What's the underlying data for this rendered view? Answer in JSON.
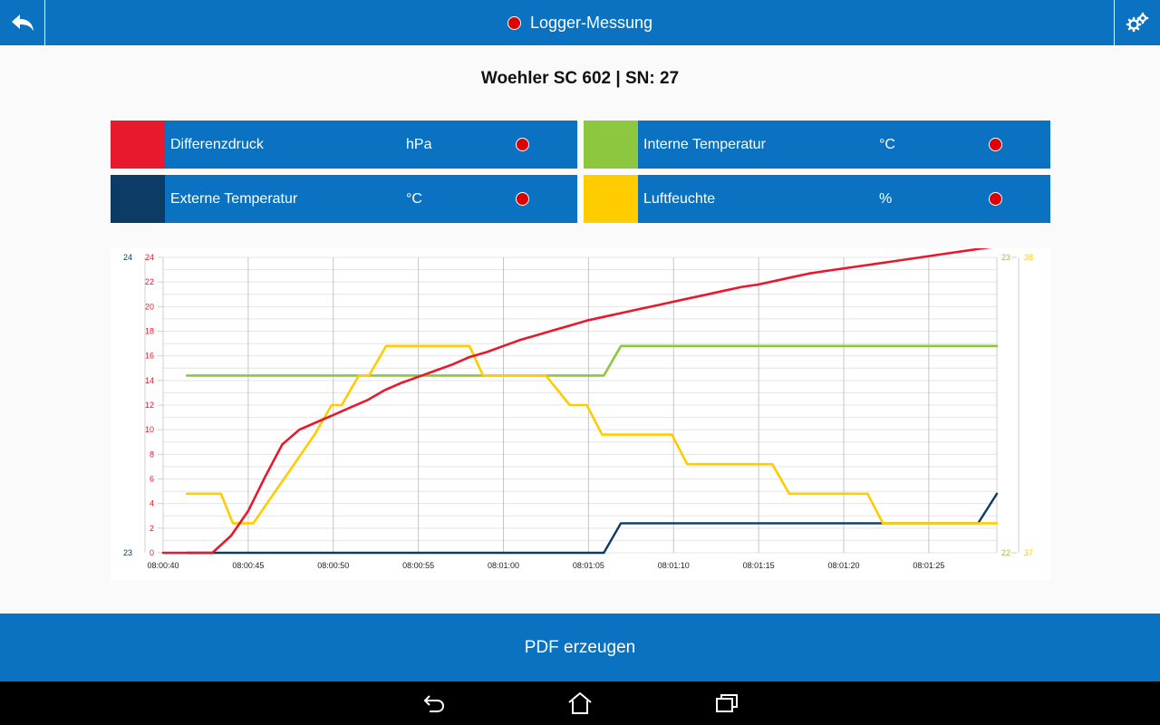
{
  "header": {
    "title": "Logger-Messung",
    "back_icon": "back-arrow-icon",
    "settings_icon": "gears-icon"
  },
  "device_title": "Woehler SC 602 | SN: 27",
  "legend": [
    {
      "name": "Differenzdruck",
      "unit": "hPa",
      "color": "#e8192c"
    },
    {
      "name": "Interne Temperatur",
      "unit": "°C",
      "color": "#8dc63f"
    },
    {
      "name": "Externe Temperatur",
      "unit": "°C",
      "color": "#0c3c66"
    },
    {
      "name": "Luftfeuchte",
      "unit": "%",
      "color": "#ffcc00"
    }
  ],
  "chart_data": {
    "type": "line",
    "x_ticks": [
      "08:00:40",
      "08:00:45",
      "08:00:50",
      "08:00:55",
      "08:01:00",
      "08:01:05",
      "08:01:10",
      "08:01:15",
      "08:01:20",
      "08:01:25"
    ],
    "left_axis_pressure": {
      "ticks": [
        "0",
        "2",
        "4",
        "6",
        "8",
        "10",
        "12",
        "14",
        "16",
        "18",
        "20",
        "22",
        "24"
      ],
      "range": [
        0,
        24
      ],
      "color": "#e8192c"
    },
    "left_axis_external": {
      "ticks": [
        "23",
        "24"
      ],
      "range": [
        23,
        24
      ],
      "color": "#0c3c66"
    },
    "right_axis_internal": {
      "ticks": [
        "22",
        "23"
      ],
      "range": [
        22,
        23
      ],
      "color": "#8dc63f"
    },
    "right_axis_humidity": {
      "ticks": [
        "37",
        "38"
      ],
      "range": [
        37,
        38
      ],
      "color": "#ffcc00"
    },
    "x_range_seconds": [
      40,
      89
    ],
    "grid": true,
    "series": [
      {
        "name": "Differenzdruck",
        "axis": "pressure",
        "color": "#e8192c",
        "x": [
          40,
          42.9,
          44,
          45,
          46,
          47,
          48,
          49,
          50,
          51,
          52,
          53,
          54,
          55,
          56,
          57,
          58,
          59,
          60,
          61,
          62,
          63,
          64,
          65,
          66,
          67,
          68,
          69,
          70,
          71,
          72,
          73,
          74,
          75,
          76,
          77,
          78,
          79,
          80,
          81,
          82,
          83,
          84,
          85,
          86,
          87,
          88,
          89
        ],
        "y": [
          0,
          0,
          1.4,
          3.4,
          6.2,
          8.8,
          10,
          10.6,
          11.2,
          11.8,
          12.4,
          13.2,
          13.8,
          14.3,
          14.8,
          15.3,
          15.9,
          16.3,
          16.8,
          17.3,
          17.7,
          18.1,
          18.5,
          18.9,
          19.2,
          19.5,
          19.8,
          20.1,
          20.4,
          20.7,
          21.0,
          21.3,
          21.6,
          21.8,
          22.1,
          22.4,
          22.7,
          22.9,
          23.1,
          23.3,
          23.5,
          23.7,
          23.9,
          24.1,
          24.3,
          24.5,
          24.7,
          24.9
        ]
      },
      {
        "name": "Interne Temperatur",
        "axis": "internal",
        "color": "#8dc63f",
        "x": [
          41.4,
          65.9,
          66.9,
          89
        ],
        "y": [
          22.6,
          22.6,
          22.7,
          22.7
        ]
      },
      {
        "name": "Externe Temperatur",
        "axis": "external",
        "color": "#0c3c66",
        "x": [
          41.4,
          65.9,
          66.9,
          87.9,
          89
        ],
        "y": [
          23.0,
          23.0,
          23.1,
          23.1,
          23.2
        ]
      },
      {
        "name": "Luftfeuchte",
        "axis": "humidity",
        "color": "#ffcc00",
        "x": [
          41.4,
          43.4,
          44.1,
          45.3,
          46.5,
          47.7,
          48.9,
          49.9,
          50.5,
          51.5,
          52.1,
          53.1,
          53.7,
          58,
          58.8,
          62.5,
          63.9,
          64.9,
          65.8,
          69.9,
          70.8,
          75.8,
          76.8,
          81.4,
          82.3,
          89
        ],
        "y": [
          37.2,
          37.2,
          37.1,
          37.1,
          37.2,
          37.3,
          37.4,
          37.5,
          37.5,
          37.6,
          37.6,
          37.7,
          37.7,
          37.7,
          37.6,
          37.6,
          37.5,
          37.5,
          37.4,
          37.4,
          37.3,
          37.3,
          37.2,
          37.2,
          37.1,
          37.1
        ]
      }
    ]
  },
  "pdf_button": {
    "label": "PDF erzeugen"
  },
  "navbar": {
    "back_icon": "nav-back-icon",
    "home_icon": "nav-home-icon",
    "recents_icon": "nav-recents-icon"
  }
}
